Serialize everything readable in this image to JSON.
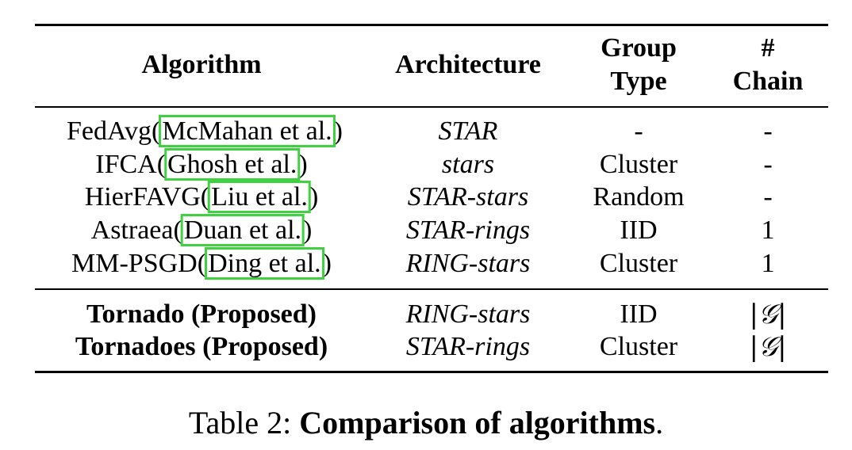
{
  "table": {
    "headers": {
      "algorithm": "Algorithm",
      "architecture": "Architecture",
      "group_line1": "Group",
      "group_line2": "Type",
      "chain_line1": "#",
      "chain_line2": "Chain"
    },
    "rows": [
      {
        "pre": "FedAvg(",
        "cite": "McMahan et al.",
        "post": ")",
        "architecture": "STAR",
        "group": "-",
        "chain": "-"
      },
      {
        "pre": "IFCA(",
        "cite": "Ghosh et al.",
        "post": ")",
        "architecture": "stars",
        "group": "Cluster",
        "chain": "-"
      },
      {
        "pre": "HierFAVG(",
        "cite": "Liu et al.",
        "post": ")",
        "architecture": "STAR-stars",
        "group": "Random",
        "chain": "-"
      },
      {
        "pre": "Astraea(",
        "cite": "Duan et al.",
        "post": ")",
        "architecture": "STAR-rings",
        "group": "IID",
        "chain": "1"
      },
      {
        "pre": "MM-PSGD(",
        "cite": "Ding et al.",
        "post": ")",
        "architecture": "RING-stars",
        "group": "Cluster",
        "chain": "1"
      }
    ],
    "proposed": [
      {
        "name": "Tornado (Proposed)",
        "architecture": "RING-stars",
        "group": "IID",
        "chain": "|𝒢|"
      },
      {
        "name": "Tornadoes (Proposed)",
        "architecture": "STAR-rings",
        "group": "Cluster",
        "chain": "|𝒢|"
      }
    ]
  },
  "caption": {
    "prefix": "Table 2: ",
    "title": "Comparison of algorithms",
    "suffix": "."
  },
  "colors": {
    "citation_box": "#3fd13f"
  }
}
